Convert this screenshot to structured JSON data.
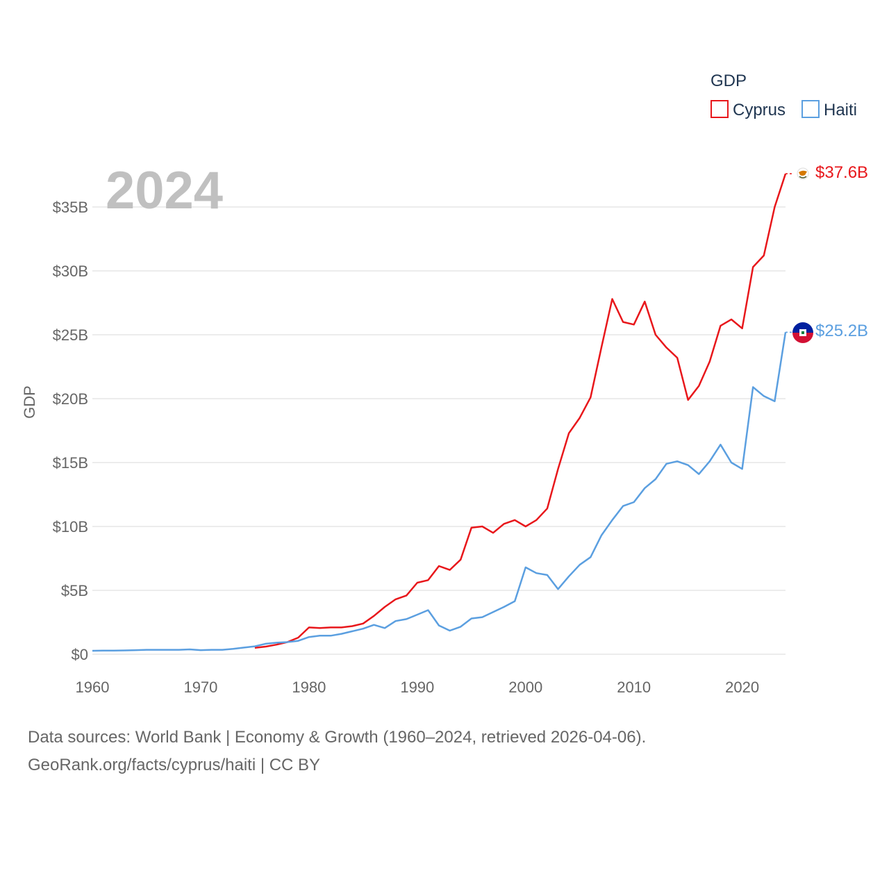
{
  "chart_data": {
    "type": "line",
    "title": "",
    "year_label": "2024",
    "xlabel": "",
    "ylabel": "GDP",
    "xlim": [
      1960,
      2024
    ],
    "ylim": [
      0,
      37.6
    ],
    "x_ticks": [
      1960,
      1970,
      1980,
      1990,
      2000,
      2010,
      2020
    ],
    "x_tick_labels": [
      "1960",
      "1970",
      "1980",
      "1990",
      "2000",
      "2010",
      "2020"
    ],
    "y_ticks": [
      0,
      5,
      10,
      15,
      20,
      25,
      30,
      35
    ],
    "y_tick_labels": [
      "$0",
      "$5B",
      "$10B",
      "$15B",
      "$20B",
      "$25B",
      "$30B",
      "$35B"
    ],
    "grid": true,
    "legend_title": "GDP",
    "legend_position": "top-right",
    "series": [
      {
        "name": "Cyprus",
        "color": "#e8171b",
        "end_label": "$37.6B",
        "icon": "cyprus-flag-icon",
        "x": [
          1975,
          1976,
          1977,
          1978,
          1979,
          1980,
          1981,
          1982,
          1983,
          1984,
          1985,
          1986,
          1987,
          1988,
          1989,
          1990,
          1991,
          1992,
          1993,
          1994,
          1995,
          1996,
          1997,
          1998,
          1999,
          2000,
          2001,
          2002,
          2003,
          2004,
          2005,
          2006,
          2007,
          2008,
          2009,
          2010,
          2011,
          2012,
          2013,
          2014,
          2015,
          2016,
          2017,
          2018,
          2019,
          2020,
          2021,
          2022,
          2023,
          2024
        ],
        "values": [
          0.5,
          0.6,
          0.75,
          0.95,
          1.3,
          2.1,
          2.05,
          2.1,
          2.1,
          2.2,
          2.4,
          3.0,
          3.7,
          4.3,
          4.6,
          5.6,
          5.8,
          6.9,
          6.6,
          7.4,
          9.9,
          10.0,
          9.5,
          10.2,
          10.5,
          10.0,
          10.5,
          11.4,
          14.5,
          17.3,
          18.5,
          20.1,
          24.0,
          27.8,
          26.0,
          25.8,
          27.6,
          25.0,
          24.0,
          23.2,
          19.9,
          21.0,
          22.9,
          25.7,
          26.2,
          25.5,
          30.3,
          31.2,
          35.0,
          37.6
        ]
      },
      {
        "name": "Haiti",
        "color": "#5b9fe0",
        "end_label": "$25.2B",
        "icon": "haiti-flag-icon",
        "x": [
          1960,
          1961,
          1962,
          1963,
          1964,
          1965,
          1966,
          1967,
          1968,
          1969,
          1970,
          1971,
          1972,
          1973,
          1974,
          1975,
          1976,
          1977,
          1978,
          1979,
          1980,
          1981,
          1982,
          1983,
          1984,
          1985,
          1986,
          1987,
          1988,
          1989,
          1990,
          1991,
          1992,
          1993,
          1994,
          1995,
          1996,
          1997,
          1998,
          1999,
          2000,
          2001,
          2002,
          2003,
          2004,
          2005,
          2006,
          2007,
          2008,
          2009,
          2010,
          2011,
          2012,
          2013,
          2014,
          2015,
          2016,
          2017,
          2018,
          2019,
          2020,
          2021,
          2022,
          2023,
          2024
        ],
        "values": [
          0.27,
          0.28,
          0.28,
          0.3,
          0.32,
          0.35,
          0.35,
          0.35,
          0.35,
          0.38,
          0.32,
          0.35,
          0.35,
          0.42,
          0.52,
          0.62,
          0.82,
          0.9,
          0.95,
          1.05,
          1.35,
          1.45,
          1.45,
          1.6,
          1.8,
          2.0,
          2.3,
          2.05,
          2.6,
          2.75,
          3.1,
          3.45,
          2.25,
          1.85,
          2.15,
          2.8,
          2.9,
          3.3,
          3.7,
          4.15,
          6.8,
          6.35,
          6.2,
          5.1,
          6.1,
          7.0,
          7.6,
          9.3,
          10.5,
          11.6,
          11.9,
          13.0,
          13.7,
          14.9,
          15.1,
          14.8,
          14.1,
          15.1,
          16.4,
          15.0,
          14.5,
          20.9,
          20.2,
          19.8,
          25.2
        ]
      }
    ]
  },
  "footer": {
    "line1": "Data sources: World Bank | Economy & Growth (1960–2024, retrieved 2026-04-06).",
    "line2": "GeoRank.org/facts/cyprus/haiti | CC BY"
  }
}
